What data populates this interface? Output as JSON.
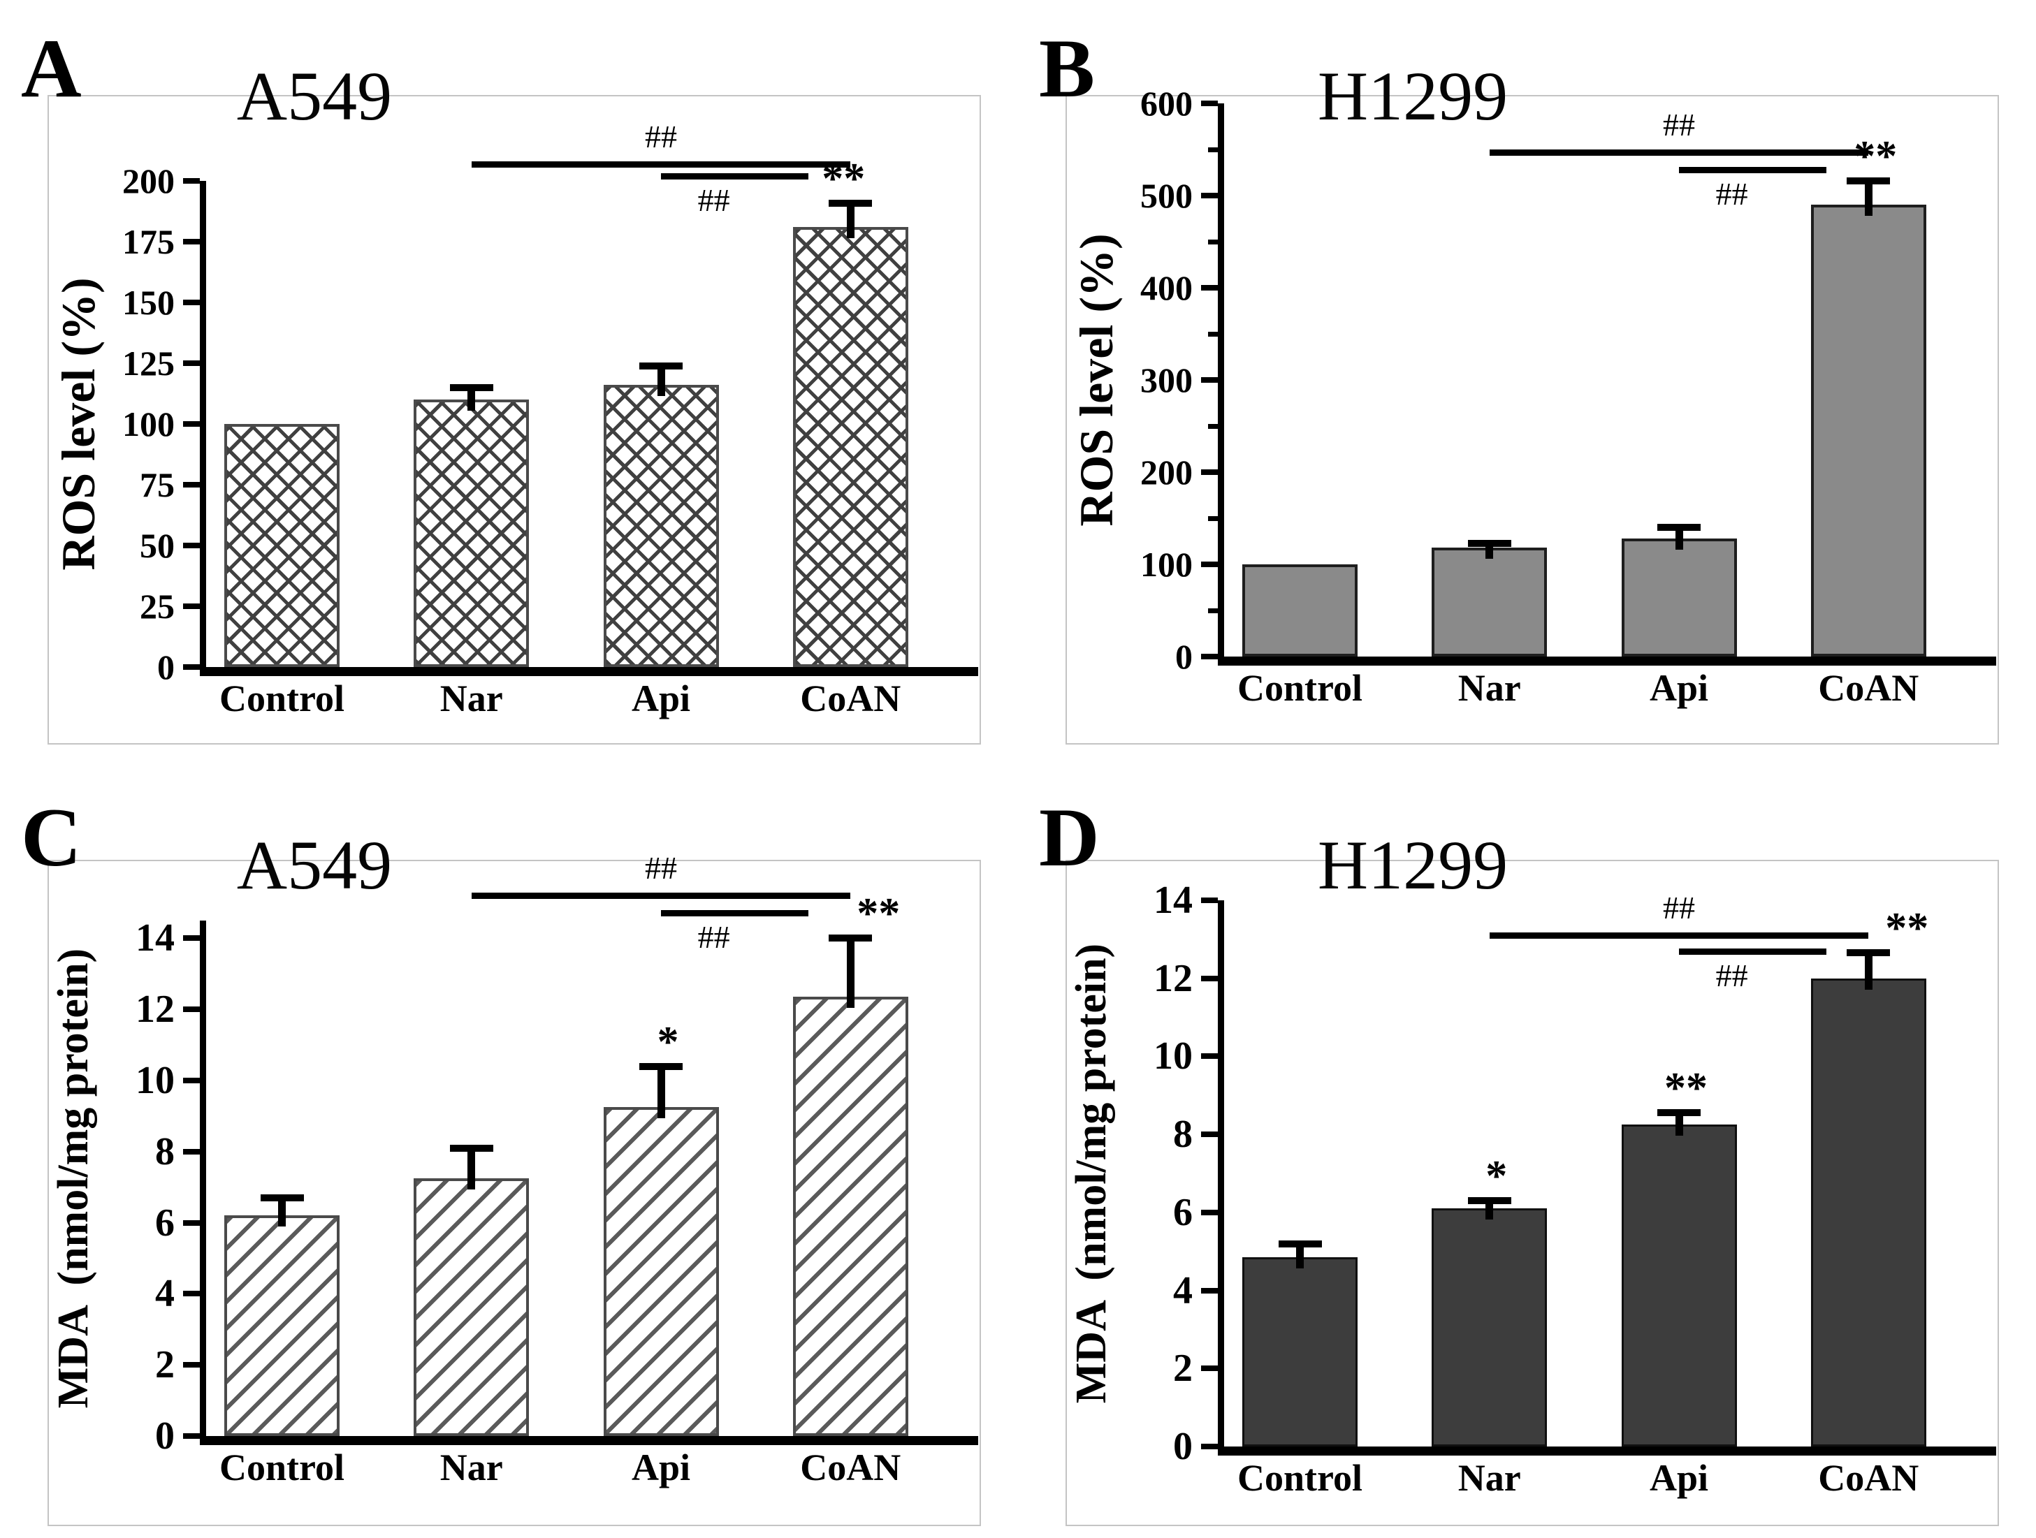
{
  "figure": {
    "background": "#ffffff",
    "layout": "2x2-panel-bar-figure"
  },
  "chart_data": [
    {
      "panel": "A",
      "type": "bar",
      "title": "A549",
      "ylabel": "ROS level (%)",
      "categories": [
        "Control",
        "Nar",
        "Api",
        "CoAN"
      ],
      "values": [
        100,
        110,
        116,
        181
      ],
      "errors": [
        0,
        5,
        8,
        10
      ],
      "annotations": [
        "",
        "",
        "",
        "**"
      ],
      "ylim": [
        0,
        200
      ],
      "ylim_render": [
        0,
        209
      ],
      "spine_max": 200,
      "ytick_step": 25,
      "ytick_labels": [
        "0",
        "25",
        "50",
        "75",
        "100",
        "125",
        "150",
        "175",
        "200"
      ],
      "minor_ticks": [],
      "grid": false,
      "legend": null,
      "bar_style": {
        "pattern": "crosshatch",
        "fill": "#ffffff",
        "hatch_color": "#404040",
        "border_color": "#4a4a4a"
      },
      "significance": [
        {
          "from": "Nar",
          "to": "CoAN",
          "label": "##",
          "label_side": "above",
          "y": 207,
          "shorten_right": 0
        },
        {
          "from": "Api",
          "to": "CoAN",
          "label": "##",
          "label_side": "below",
          "y": 202,
          "shorten_right": 60
        }
      ]
    },
    {
      "panel": "B",
      "type": "bar",
      "title": "H1299",
      "ylabel": "ROS level (%)",
      "categories": [
        "Control",
        "Nar",
        "Api",
        "CoAN"
      ],
      "values": [
        100,
        118,
        128,
        490
      ],
      "errors": [
        0,
        5,
        12,
        26
      ],
      "annotations": [
        "",
        "",
        "",
        "**"
      ],
      "ylim": [
        0,
        600
      ],
      "ylim_render": [
        0,
        600
      ],
      "spine_max": 600,
      "ytick_step": 100,
      "ytick_labels": [
        "0",
        "100",
        "200",
        "300",
        "400",
        "500",
        "600"
      ],
      "minor_ticks": [
        50,
        150,
        250,
        350,
        450,
        550
      ],
      "grid": false,
      "legend": null,
      "bar_style": {
        "pattern": "solid",
        "fill": "#8a8a8a",
        "hatch_color": null,
        "border_color": "#1e1e1e"
      },
      "significance": [
        {
          "from": "Nar",
          "to": "CoAN",
          "label": "##",
          "label_side": "above",
          "y": 547,
          "shorten_right": 0
        },
        {
          "from": "Api",
          "to": "CoAN",
          "label": "##",
          "label_side": "below",
          "y": 528,
          "shorten_right": 60
        }
      ]
    },
    {
      "panel": "C",
      "type": "bar",
      "title": "A549",
      "ylabel": "MDA  (nmol/mg protein)",
      "categories": [
        "Control",
        "Nar",
        "Api",
        "CoAN"
      ],
      "values": [
        6.2,
        7.25,
        9.25,
        12.35
      ],
      "errors": [
        0.5,
        0.85,
        1.15,
        1.65
      ],
      "annotations": [
        "",
        "",
        "*",
        "**"
      ],
      "ylim": [
        0,
        14
      ],
      "ylim_render": [
        0,
        15.5
      ],
      "spine_max": 14.5,
      "ytick_step": 2,
      "ytick_labels": [
        "0",
        "2",
        "4",
        "6",
        "8",
        "10",
        "12",
        "14"
      ],
      "minor_ticks": [],
      "grid": false,
      "legend": null,
      "bar_style": {
        "pattern": "diagonal",
        "fill": "#ffffff",
        "hatch_color": "#5a5a5a",
        "border_color": "#4a4a4a"
      },
      "significance": [
        {
          "from": "Nar",
          "to": "CoAN",
          "label": "##",
          "label_side": "above",
          "y": 15.2,
          "shorten_right": 0
        },
        {
          "from": "Api",
          "to": "CoAN",
          "label": "##",
          "label_side": "below",
          "y": 14.72,
          "shorten_right": 60
        }
      ]
    },
    {
      "panel": "D",
      "type": "bar",
      "title": "H1299",
      "ylabel": "MDA  (nmol/mg protein)",
      "categories": [
        "Control",
        "Nar",
        "Api",
        "CoAN"
      ],
      "values": [
        4.85,
        6.1,
        8.25,
        12.0
      ],
      "errors": [
        0.35,
        0.2,
        0.3,
        0.65
      ],
      "annotations": [
        "",
        "*",
        "**",
        "**"
      ],
      "ylim": [
        0,
        14
      ],
      "ylim_render": [
        0,
        14
      ],
      "spine_max": 14,
      "ytick_step": 2,
      "ytick_labels": [
        "0",
        "2",
        "4",
        "6",
        "8",
        "10",
        "12",
        "14"
      ],
      "minor_ticks": [],
      "grid": false,
      "legend": null,
      "bar_style": {
        "pattern": "solid",
        "fill": "#3d3d3d",
        "hatch_color": null,
        "border_color": "#101010"
      },
      "significance": [
        {
          "from": "Nar",
          "to": "CoAN",
          "label": "##",
          "label_side": "above",
          "y": 13.1,
          "shorten_right": 0
        },
        {
          "from": "Api",
          "to": "CoAN",
          "label": "##",
          "label_side": "below",
          "y": 12.7,
          "shorten_right": 60
        }
      ]
    }
  ]
}
